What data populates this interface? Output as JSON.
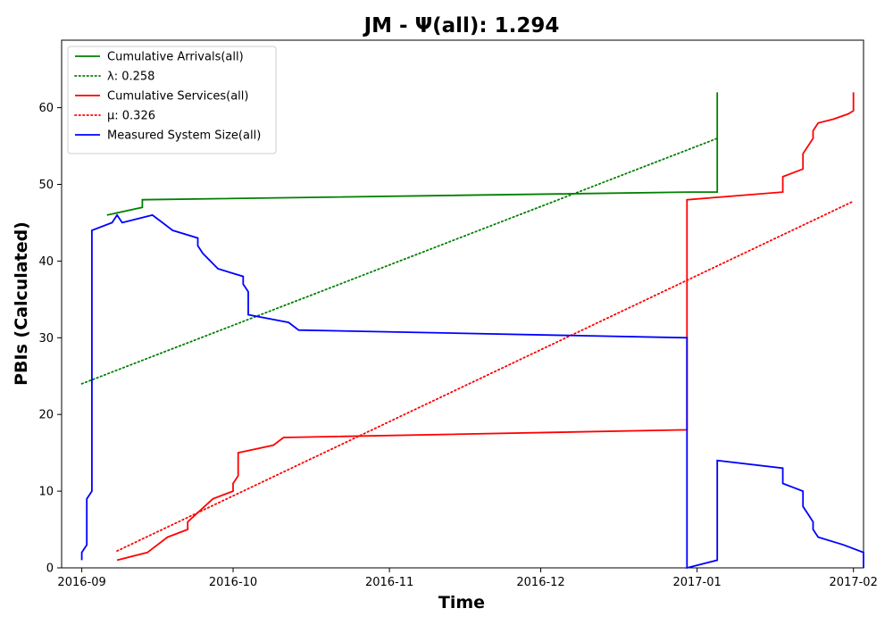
{
  "chart_data": {
    "type": "line",
    "title": "JM -  Ψ(all): 1.294",
    "xlabel": "Time",
    "ylabel": "PBIs (Calculated)",
    "xlim": [
      "2016-08-28",
      "2017-02-03"
    ],
    "ylim": [
      0,
      68.8
    ],
    "x_ticks": [
      "2016-09",
      "2016-10",
      "2016-11",
      "2016-12",
      "2017-01",
      "2017-02"
    ],
    "y_ticks": [
      0,
      10,
      20,
      30,
      40,
      50,
      60
    ],
    "grid": false,
    "legend_position": "top-left",
    "series": [
      {
        "name": "Cumulative Arrivals(all)",
        "color": "#008000",
        "style": "solid",
        "points": [
          [
            "2016-09-06",
            46
          ],
          [
            "2016-09-13",
            47
          ],
          [
            "2016-09-13",
            48
          ],
          [
            "2016-12-31",
            49
          ],
          [
            "2017-01-05",
            49
          ],
          [
            "2017-01-05",
            62
          ]
        ]
      },
      {
        "name": "λ: 0.258",
        "color": "#008000",
        "style": "dotted",
        "points": [
          [
            "2016-09-01",
            24
          ],
          [
            "2017-01-05",
            56
          ]
        ]
      },
      {
        "name": "Cumulative Services(all)",
        "color": "#ff0000",
        "style": "solid",
        "points": [
          [
            "2016-09-08",
            1
          ],
          [
            "2016-09-14",
            2
          ],
          [
            "2016-09-16",
            3
          ],
          [
            "2016-09-18",
            4
          ],
          [
            "2016-09-22",
            5
          ],
          [
            "2016-09-22",
            6
          ],
          [
            "2016-09-27",
            9
          ],
          [
            "2016-09-29",
            9.5
          ],
          [
            "2016-10-01",
            10
          ],
          [
            "2016-10-01",
            11
          ],
          [
            "2016-10-02",
            12
          ],
          [
            "2016-10-02",
            15
          ],
          [
            "2016-10-09",
            16
          ],
          [
            "2016-10-11",
            17
          ],
          [
            "2016-12-30",
            18
          ],
          [
            "2016-12-30",
            48
          ],
          [
            "2017-01-18",
            49
          ],
          [
            "2017-01-18",
            51
          ],
          [
            "2017-01-22",
            52
          ],
          [
            "2017-01-22",
            54
          ],
          [
            "2017-01-24",
            56
          ],
          [
            "2017-01-24",
            57
          ],
          [
            "2017-01-25",
            58
          ],
          [
            "2017-01-28",
            58.5
          ],
          [
            "2017-01-31",
            59.2
          ],
          [
            "2017-02-01",
            59.6
          ],
          [
            "2017-02-01",
            62
          ]
        ]
      },
      {
        "name": "μ: 0.326",
        "color": "#ff0000",
        "style": "dotted",
        "points": [
          [
            "2016-09-08",
            2.2
          ],
          [
            "2017-02-01",
            47.8
          ]
        ]
      },
      {
        "name": "Measured System Size(all)",
        "color": "#0000ff",
        "style": "solid",
        "points": [
          [
            "2016-09-01",
            1
          ],
          [
            "2016-09-01",
            2
          ],
          [
            "2016-09-02",
            3
          ],
          [
            "2016-09-02",
            9
          ],
          [
            "2016-09-03",
            10
          ],
          [
            "2016-09-03",
            44
          ],
          [
            "2016-09-07",
            45
          ],
          [
            "2016-09-08",
            46
          ],
          [
            "2016-09-09",
            45
          ],
          [
            "2016-09-15",
            46
          ],
          [
            "2016-09-17",
            45
          ],
          [
            "2016-09-19",
            44
          ],
          [
            "2016-09-24",
            43
          ],
          [
            "2016-09-24",
            42
          ],
          [
            "2016-09-25",
            41
          ],
          [
            "2016-09-28",
            39
          ],
          [
            "2016-10-03",
            38
          ],
          [
            "2016-10-03",
            37
          ],
          [
            "2016-10-04",
            36
          ],
          [
            "2016-10-04",
            33
          ],
          [
            "2016-10-12",
            32
          ],
          [
            "2016-10-14",
            31
          ],
          [
            "2016-12-30",
            30
          ],
          [
            "2016-12-30",
            0
          ],
          [
            "2017-01-05",
            1
          ],
          [
            "2017-01-05",
            14
          ],
          [
            "2017-01-18",
            13
          ],
          [
            "2017-01-18",
            11
          ],
          [
            "2017-01-22",
            10
          ],
          [
            "2017-01-22",
            8
          ],
          [
            "2017-01-23",
            7
          ],
          [
            "2017-01-24",
            6
          ],
          [
            "2017-01-24",
            5
          ],
          [
            "2017-01-25",
            4
          ],
          [
            "2017-01-30",
            3
          ],
          [
            "2017-02-03",
            2
          ],
          [
            "2017-02-03",
            0
          ]
        ]
      }
    ]
  }
}
